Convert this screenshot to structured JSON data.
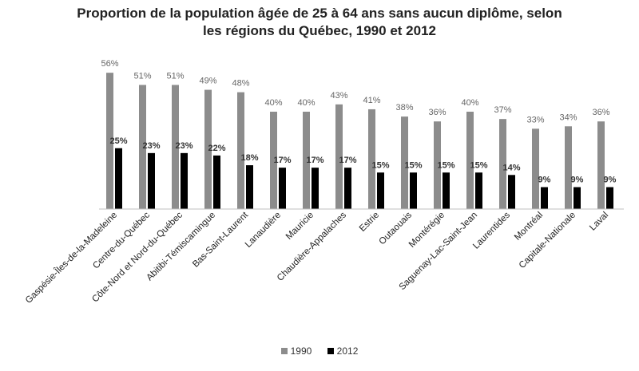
{
  "chart_data": {
    "type": "bar",
    "title_line1": "Proportion de la population âgée de 25 à 64 ans sans aucun diplôme, selon",
    "title_line2": "les régions du Québec, 1990 et 2012",
    "xlabel": "",
    "ylabel": "",
    "ylim": [
      0,
      60
    ],
    "categories": [
      "Gaspésie-Îles-de-la-Madeleine",
      "Centre-du-Québec",
      "Côte-Nord et Nord-du-Québec",
      "Abitibi-Témiscamingue",
      "Bas-Saint-Laurent",
      "Lanaudière",
      "Mauricie",
      "Chaudière-Appalaches",
      "Estrie",
      "Outaouais",
      "Montérégie",
      "Saguenay-Lac-Saint-Jean",
      "Laurentides",
      "Montréal",
      "Capitale-Nationale",
      "Laval"
    ],
    "series": [
      {
        "name": "1990",
        "color": "#8c8c8c",
        "values": [
          56,
          51,
          51,
          49,
          48,
          40,
          40,
          43,
          41,
          38,
          36,
          40,
          37,
          33,
          34,
          36
        ],
        "labels": [
          "56%",
          "51%",
          "51%",
          "49%",
          "48%",
          "40%",
          "40%",
          "43%",
          "41%",
          "38%",
          "36%",
          "40%",
          "37%",
          "33%",
          "34%",
          "36%"
        ]
      },
      {
        "name": "2012",
        "color": "#000000",
        "values": [
          25,
          23,
          23,
          22,
          18,
          17,
          17,
          17,
          15,
          15,
          15,
          15,
          14,
          9,
          9,
          9
        ],
        "labels": [
          "25%",
          "23%",
          "23%",
          "22%",
          "18%",
          "17%",
          "17%",
          "17%",
          "15%",
          "15%",
          "15%",
          "15%",
          "14%",
          "9%",
          "9%",
          "9%"
        ]
      }
    ],
    "legend_position": "bottom-center"
  }
}
